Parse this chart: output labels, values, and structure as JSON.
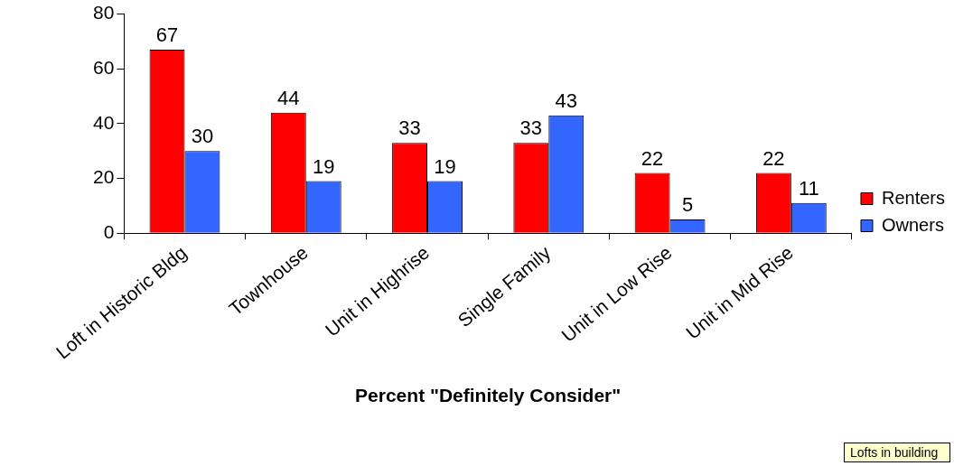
{
  "chart_data": {
    "type": "bar",
    "xlabel": "Percent \"Definitely Consider\"",
    "categories": [
      "Loft in Historic Bldg",
      "Townhouse",
      "Unit in Highrise",
      "Single Family",
      "Unit in Low Rise",
      "Unit in Mid Rise"
    ],
    "series": [
      {
        "name": "Renters",
        "color": "#ff0000",
        "values": [
          67,
          44,
          33,
          33,
          22,
          22
        ]
      },
      {
        "name": "Owners",
        "color": "#3366ff",
        "values": [
          30,
          19,
          19,
          43,
          5,
          11
        ]
      }
    ],
    "ylim": [
      0,
      80
    ],
    "yticks": [
      0,
      20,
      40,
      60,
      80
    ],
    "grid": false,
    "legend": "right",
    "data_labels": true,
    "annotations": [
      "Lofts in building"
    ]
  }
}
